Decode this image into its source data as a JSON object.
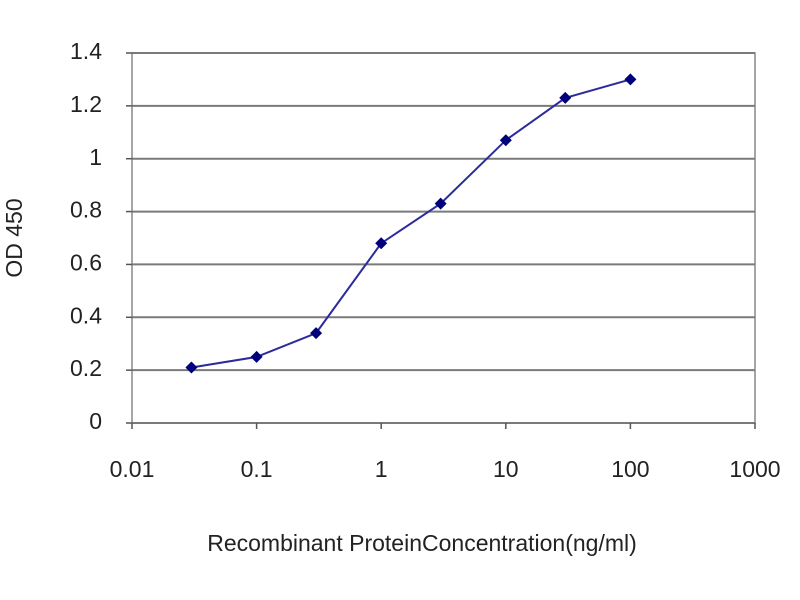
{
  "chart_data": {
    "type": "line",
    "x_label": "Recombinant ProteinConcentration(ng/ml)",
    "y_label": "OD 450",
    "x": [
      0.03,
      0.1,
      0.3,
      1,
      3,
      10,
      30,
      100
    ],
    "values": [
      0.21,
      0.25,
      0.34,
      0.68,
      0.83,
      1.07,
      1.23,
      1.3
    ],
    "color": "#2b2b9c",
    "marker_color": "#00007a",
    "xscale": "log",
    "xlim": [
      0.01,
      1000
    ],
    "xticks": [
      0.01,
      0.1,
      1,
      10,
      100,
      1000
    ],
    "ylim": [
      0,
      1.4
    ],
    "yticks": [
      0,
      0.2,
      0.4,
      0.6,
      0.8,
      1,
      1.2,
      1.4
    ],
    "grid": true
  }
}
